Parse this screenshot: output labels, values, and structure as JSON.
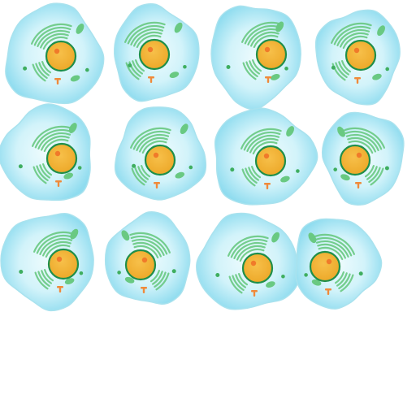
{
  "sheet": {
    "rows": [
      [
        "cell-1",
        "cell-2",
        "cell-3",
        "cell-4"
      ],
      [
        "cell-5",
        "cell-6",
        "cell-7",
        "cell-8"
      ],
      [
        "cell-9",
        "cell-10",
        "cell-11",
        "cell-12"
      ]
    ],
    "cell_count": 12
  },
  "colors": {
    "background": "#ffffff",
    "cytoplasm_outer": "#8fdcef",
    "cytoplasm_inner": "#dcf6fb",
    "membrane_stroke": "#a9e2ee",
    "nucleus_fill": "#f2b233",
    "nucleus_stroke": "#1f8f4a",
    "nucleolus": "#f07a2a",
    "organelle_green": "#69c982",
    "organelle_dark_green": "#3fae5f",
    "centriole_orange": "#f08a3a"
  },
  "icons": {
    "cell": "animal-cell-icon",
    "nucleus": "nucleus-icon",
    "nucleolus": "nucleolus-icon",
    "golgi": "golgi-apparatus-icon",
    "mitochondrion": "mitochondrion-icon",
    "centrosome": "centrosome-icon",
    "vesicle": "vesicle-icon"
  }
}
